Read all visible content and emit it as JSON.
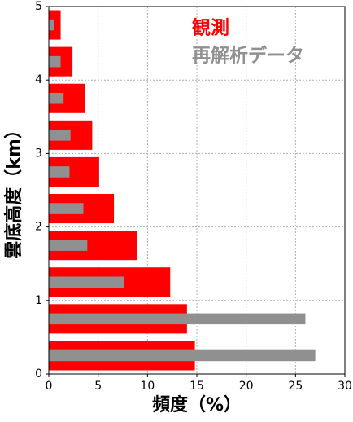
{
  "chart_data": {
    "type": "barh",
    "xlabel": "頻度（%）",
    "ylabel": "雲底高度（km）",
    "y": [
      0.25,
      0.75,
      1.25,
      1.75,
      2.25,
      2.75,
      3.25,
      3.75,
      4.25,
      4.75
    ],
    "series": [
      {
        "name": "観測",
        "color": "#ff0000",
        "values": [
          14.8,
          14.0,
          12.3,
          8.9,
          6.6,
          5.1,
          4.4,
          3.7,
          2.4,
          1.2
        ]
      },
      {
        "name": "再解析データ",
        "color": "#909090",
        "values": [
          27.0,
          26.0,
          7.6,
          3.9,
          3.5,
          2.1,
          2.2,
          1.5,
          1.2,
          0.5
        ]
      }
    ],
    "xlim": [
      0,
      30
    ],
    "xticks": [
      0,
      5,
      10,
      15,
      20,
      25,
      30
    ],
    "ylim": [
      0,
      5
    ],
    "yticks": [
      0,
      1,
      2,
      3,
      4,
      5
    ],
    "grid": true,
    "legend": "upper-right"
  }
}
